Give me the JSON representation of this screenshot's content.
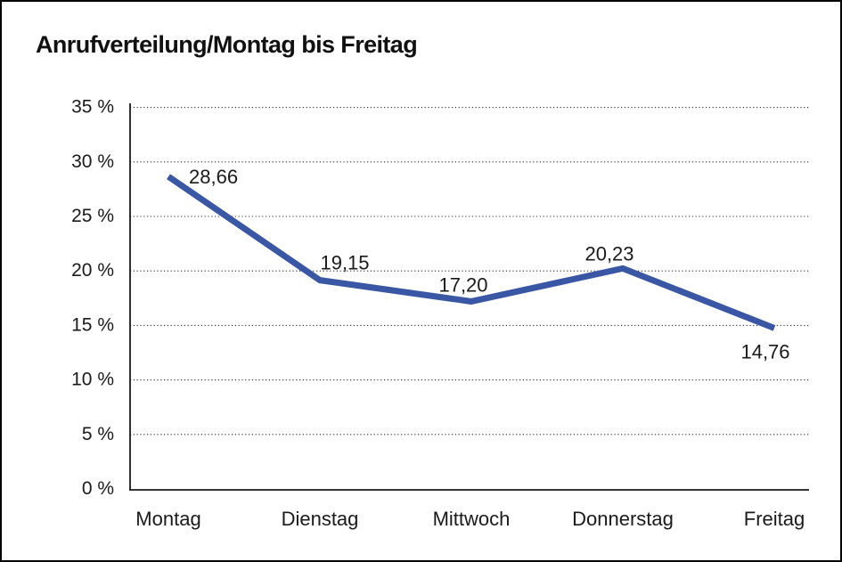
{
  "page": {
    "background": "#ffffff",
    "border_color": "#000000"
  },
  "title": "Anrufverteilung/Montag bis Freitag",
  "chart_data": {
    "type": "line",
    "title": "Anrufverteilung/Montag bis Freitag",
    "categories": [
      "Montag",
      "Dienstag",
      "Mittwoch",
      "Donnerstag",
      "Freitag"
    ],
    "series": [
      {
        "name": "Anrufverteilung",
        "values": [
          28.66,
          19.15,
          17.2,
          20.23,
          14.76
        ]
      }
    ],
    "data_labels": [
      "28,66",
      "19,15",
      "17,20",
      "20,23",
      "14,76"
    ],
    "ytick_labels": [
      "0 %",
      "5 %",
      "10 %",
      "15 %",
      "20 %",
      "25 %",
      "30 %",
      "35 %"
    ],
    "ylim": [
      0,
      35
    ],
    "ytick_step": 5,
    "xlabel": "",
    "ylabel": "",
    "grid": "horizontal-dotted",
    "legend_position": "none",
    "line_color": "#3A57A5",
    "axis_color": "#1a1a1a",
    "text_color": "#1a1a1a"
  }
}
